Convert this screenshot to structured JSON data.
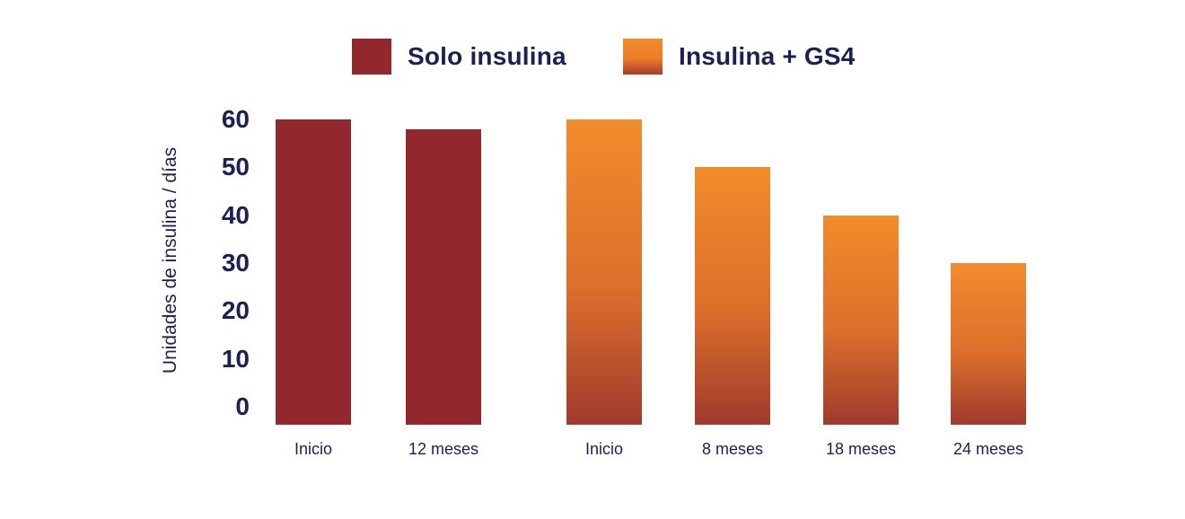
{
  "colors": {
    "background": "#FFFFFF",
    "text_navy": "#1B2150",
    "solo_insulina_red": "#92272E",
    "gs4_orange_top": "#F18C2B",
    "gs4_orange_mid": "#DD6F2B",
    "gs4_orange_bottom": "#A03A2D"
  },
  "legend": {
    "items": [
      {
        "label": "Solo insulina",
        "swatch_color": "#92272E"
      },
      {
        "label": "Insulina + GS4",
        "swatch_color": "gradient #F18C2B to #A03A2D"
      }
    ]
  },
  "chart_data": {
    "type": "bar",
    "title": "",
    "xlabel": "",
    "ylabel": "Unidades de insulina / días",
    "ylim": [
      0,
      60
    ],
    "yticks": [
      0,
      10,
      20,
      30,
      40,
      50,
      60
    ],
    "grid": false,
    "legend_position": "top-center",
    "series": [
      {
        "name": "Solo insulina",
        "style": "solid-dark-red",
        "points": [
          {
            "category": "Inicio",
            "value": 60
          },
          {
            "category": "12 meses",
            "value": 58
          }
        ]
      },
      {
        "name": "Insulina + GS4",
        "style": "orange-gradient",
        "points": [
          {
            "category": "Inicio",
            "value": 60
          },
          {
            "category": "8 meses",
            "value": 50
          },
          {
            "category": "18 meses",
            "value": 40
          },
          {
            "category": "24 meses",
            "value": 30
          }
        ]
      }
    ]
  }
}
